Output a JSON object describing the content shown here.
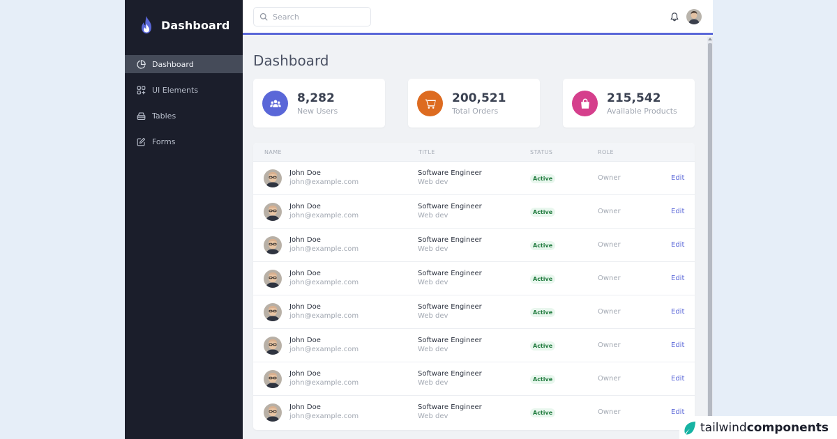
{
  "brand": {
    "name": "Dashboard"
  },
  "sidebar": {
    "items": [
      {
        "label": "Dashboard",
        "icon": "pie-chart-icon",
        "active": true
      },
      {
        "label": "UI Elements",
        "icon": "grid-plus-icon",
        "active": false
      },
      {
        "label": "Tables",
        "icon": "table-icon",
        "active": false
      },
      {
        "label": "Forms",
        "icon": "edit-icon",
        "active": false
      }
    ]
  },
  "header": {
    "search_placeholder": "Search",
    "icons": [
      "search-icon",
      "bell-icon",
      "avatar"
    ]
  },
  "main": {
    "title": "Dashboard",
    "stats": [
      {
        "value": "8,282",
        "label": "New Users",
        "icon": "users-icon",
        "color": "#5a67d8"
      },
      {
        "value": "200,521",
        "label": "Total Orders",
        "icon": "cart-icon",
        "color": "#dd6b20"
      },
      {
        "value": "215,542",
        "label": "Available Products",
        "icon": "shopping-bag-icon",
        "color": "#d53f8c"
      }
    ],
    "table": {
      "columns": [
        "NAME",
        "TITLE",
        "STATUS",
        "ROLE"
      ],
      "rows": [
        {
          "name": "John Doe",
          "email": "john@example.com",
          "title": "Software Engineer",
          "department": "Web dev",
          "status": "Active",
          "role": "Owner",
          "action": "Edit"
        },
        {
          "name": "John Doe",
          "email": "john@example.com",
          "title": "Software Engineer",
          "department": "Web dev",
          "status": "Active",
          "role": "Owner",
          "action": "Edit"
        },
        {
          "name": "John Doe",
          "email": "john@example.com",
          "title": "Software Engineer",
          "department": "Web dev",
          "status": "Active",
          "role": "Owner",
          "action": "Edit"
        },
        {
          "name": "John Doe",
          "email": "john@example.com",
          "title": "Software Engineer",
          "department": "Web dev",
          "status": "Active",
          "role": "Owner",
          "action": "Edit"
        },
        {
          "name": "John Doe",
          "email": "john@example.com",
          "title": "Software Engineer",
          "department": "Web dev",
          "status": "Active",
          "role": "Owner",
          "action": "Edit"
        },
        {
          "name": "John Doe",
          "email": "john@example.com",
          "title": "Software Engineer",
          "department": "Web dev",
          "status": "Active",
          "role": "Owner",
          "action": "Edit"
        },
        {
          "name": "John Doe",
          "email": "john@example.com",
          "title": "Software Engineer",
          "department": "Web dev",
          "status": "Active",
          "role": "Owner",
          "action": "Edit"
        },
        {
          "name": "John Doe",
          "email": "john@example.com",
          "title": "Software Engineer",
          "department": "Web dev",
          "status": "Active",
          "role": "Owner",
          "action": "Edit"
        }
      ]
    }
  },
  "watermark": {
    "part1": "tailwind",
    "part2": "components"
  },
  "colors": {
    "accent": "#5a67d8",
    "sidebar_bg": "#1b1e2b",
    "status_active_bg": "#e9f7ee",
    "status_active_text": "#1f7a3d"
  }
}
